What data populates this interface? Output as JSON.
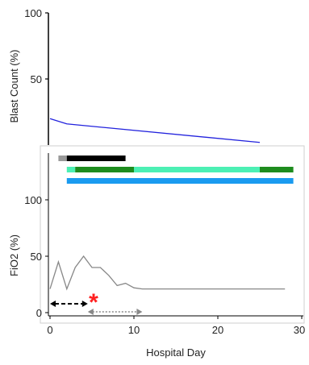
{
  "chart_data": [
    {
      "type": "line",
      "ylabel": "Blast Count (%)",
      "ylim": [
        0,
        100
      ],
      "yticks": [
        "100",
        "50"
      ],
      "series": [
        {
          "color": "#2222dd",
          "x": [
            0,
            2,
            25
          ],
          "y": [
            20,
            16,
            2
          ]
        }
      ]
    },
    {
      "type": "line",
      "xlabel": "Hospital Day",
      "ylabel": "FiO2 (%)",
      "ylim": [
        0,
        100
      ],
      "xlim": [
        0,
        30
      ],
      "xticks": [
        "0",
        "10",
        "20",
        "30"
      ],
      "yticks": [
        "0",
        "50",
        "100"
      ],
      "series": [
        {
          "color": "#888888",
          "x": [
            0,
            1,
            2,
            3,
            4,
            5,
            6,
            7,
            8,
            9,
            10,
            11,
            28
          ],
          "y": [
            21,
            45,
            21,
            40,
            50,
            40,
            40,
            33,
            24,
            26,
            22,
            21,
            21
          ]
        }
      ],
      "bars": [
        {
          "color": "#999999",
          "start": 1,
          "end": 2,
          "row": 0
        },
        {
          "color": "#000000",
          "start": 2,
          "end": 9,
          "row": 0
        },
        {
          "color": "#4cf0b4",
          "start": 2,
          "end": 3,
          "row": 1
        },
        {
          "color": "#1e8c1e",
          "start": 3,
          "end": 10,
          "row": 1
        },
        {
          "color": "#4cf0b4",
          "start": 10,
          "end": 25,
          "row": 1
        },
        {
          "color": "#1e8c1e",
          "start": 25,
          "end": 29,
          "row": 1
        },
        {
          "color": "#1a9bf0",
          "start": 2,
          "end": 29,
          "row": 2
        }
      ],
      "annotations": [
        {
          "kind": "double-arrow",
          "style": "dashed-black",
          "start": 0,
          "end": 4.5
        },
        {
          "kind": "double-arrow",
          "style": "dotted-gray",
          "start": 4.5,
          "end": 11
        },
        {
          "kind": "marker",
          "text": "*",
          "color": "#ff2020",
          "x": 4.8
        }
      ]
    }
  ]
}
